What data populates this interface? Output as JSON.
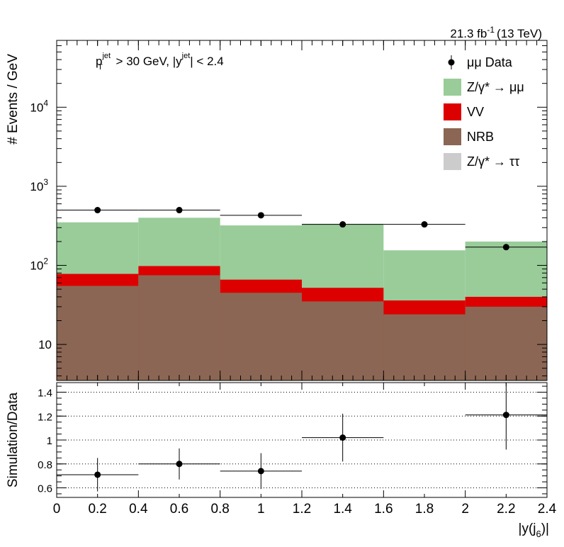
{
  "chart_data": {
    "type": "bar",
    "x_edges": [
      0,
      0.4,
      0.8,
      1.2,
      1.6,
      2.0,
      2.4
    ],
    "lumi": {
      "value": "21.3 fb",
      "exp": "-1",
      "energy": "(13 TeV)"
    },
    "cuts": {
      "pt": "p",
      "pt_sup": "jet",
      "pt_sub": "T",
      "pt_rest": " > 30 GeV,  |y",
      "y_sup": "jet",
      "y_rest": "| < 2.4"
    },
    "xlabel": {
      "main": "|y(j",
      "sub": "6",
      "end": ")|"
    },
    "top": {
      "ylabel": "# Events / GeV",
      "log": true,
      "ylim": [
        3.5,
        70000
      ],
      "ytick_labels": [
        {
          "value": 10,
          "base": "10",
          "exp": ""
        },
        {
          "value": 100,
          "base": "10",
          "exp": "2"
        },
        {
          "value": 1000,
          "base": "10",
          "exp": "3"
        },
        {
          "value": 10000,
          "base": "10",
          "exp": "4"
        }
      ],
      "series": [
        {
          "name": "Z/γ* → ττ",
          "color": "#cccccc",
          "values": [
            0,
            0,
            0,
            0,
            0,
            0
          ]
        },
        {
          "name": "NRB",
          "color": "#8b6654",
          "values": [
            55,
            75,
            45,
            35,
            24,
            30
          ]
        },
        {
          "name": "VV",
          "color": "#dd0000",
          "values": [
            78,
            98,
            66,
            52,
            36,
            40
          ]
        },
        {
          "name": "Z/γ* → μμ",
          "color": "#99cc99",
          "values": [
            350,
            400,
            320,
            335,
            155,
            200
          ]
        }
      ],
      "data": {
        "name": "μμ Data",
        "x": [
          0.2,
          0.6,
          1.0,
          1.4,
          1.8,
          2.2
        ],
        "xerr": [
          0.2,
          0.2,
          0.2,
          0.2,
          0.2,
          0.2
        ],
        "y": [
          500,
          500,
          430,
          330,
          330,
          170
        ]
      }
    },
    "ratio": {
      "ylabel": "Simulation/Data",
      "ylim": [
        0.52,
        1.48
      ],
      "yticks": [
        0.6,
        0.8,
        1.0,
        1.2,
        1.4
      ],
      "ytick_labels": [
        "0.6",
        "0.8",
        "1",
        "1.2",
        "1.4"
      ],
      "grid": true,
      "x": [
        0.2,
        0.6,
        1.0,
        1.4,
        1.8,
        2.2
      ],
      "xerr": [
        0.2,
        0.2,
        0.2,
        0.2,
        0.2,
        0.2
      ],
      "y": [
        0.71,
        0.8,
        0.74,
        1.02,
        null,
        1.21
      ],
      "yerr": [
        0.14,
        0.13,
        0.15,
        0.2,
        null,
        0.29
      ]
    },
    "xticks": [
      0,
      0.2,
      0.4,
      0.6,
      0.8,
      1.0,
      1.2,
      1.4,
      1.6,
      1.8,
      2.0,
      2.2,
      2.4
    ],
    "xtick_labels": [
      "0",
      "0.2",
      "0.4",
      "0.6",
      "0.8",
      "1",
      "1.2",
      "1.4",
      "1.6",
      "1.8",
      "2",
      "2.2",
      "2.4"
    ],
    "legend": {
      "placement": "top-right",
      "entries": [
        {
          "label": "μμ Data",
          "kind": "marker",
          "color": "#000000"
        },
        {
          "label": "Z/γ* → μμ",
          "kind": "box",
          "color": "#99cc99"
        },
        {
          "label": "VV",
          "kind": "box",
          "color": "#dd0000"
        },
        {
          "label": "NRB",
          "kind": "box",
          "color": "#8b6654"
        },
        {
          "label": "Z/γ* → ττ",
          "kind": "box",
          "color": "#cccccc"
        }
      ]
    }
  }
}
